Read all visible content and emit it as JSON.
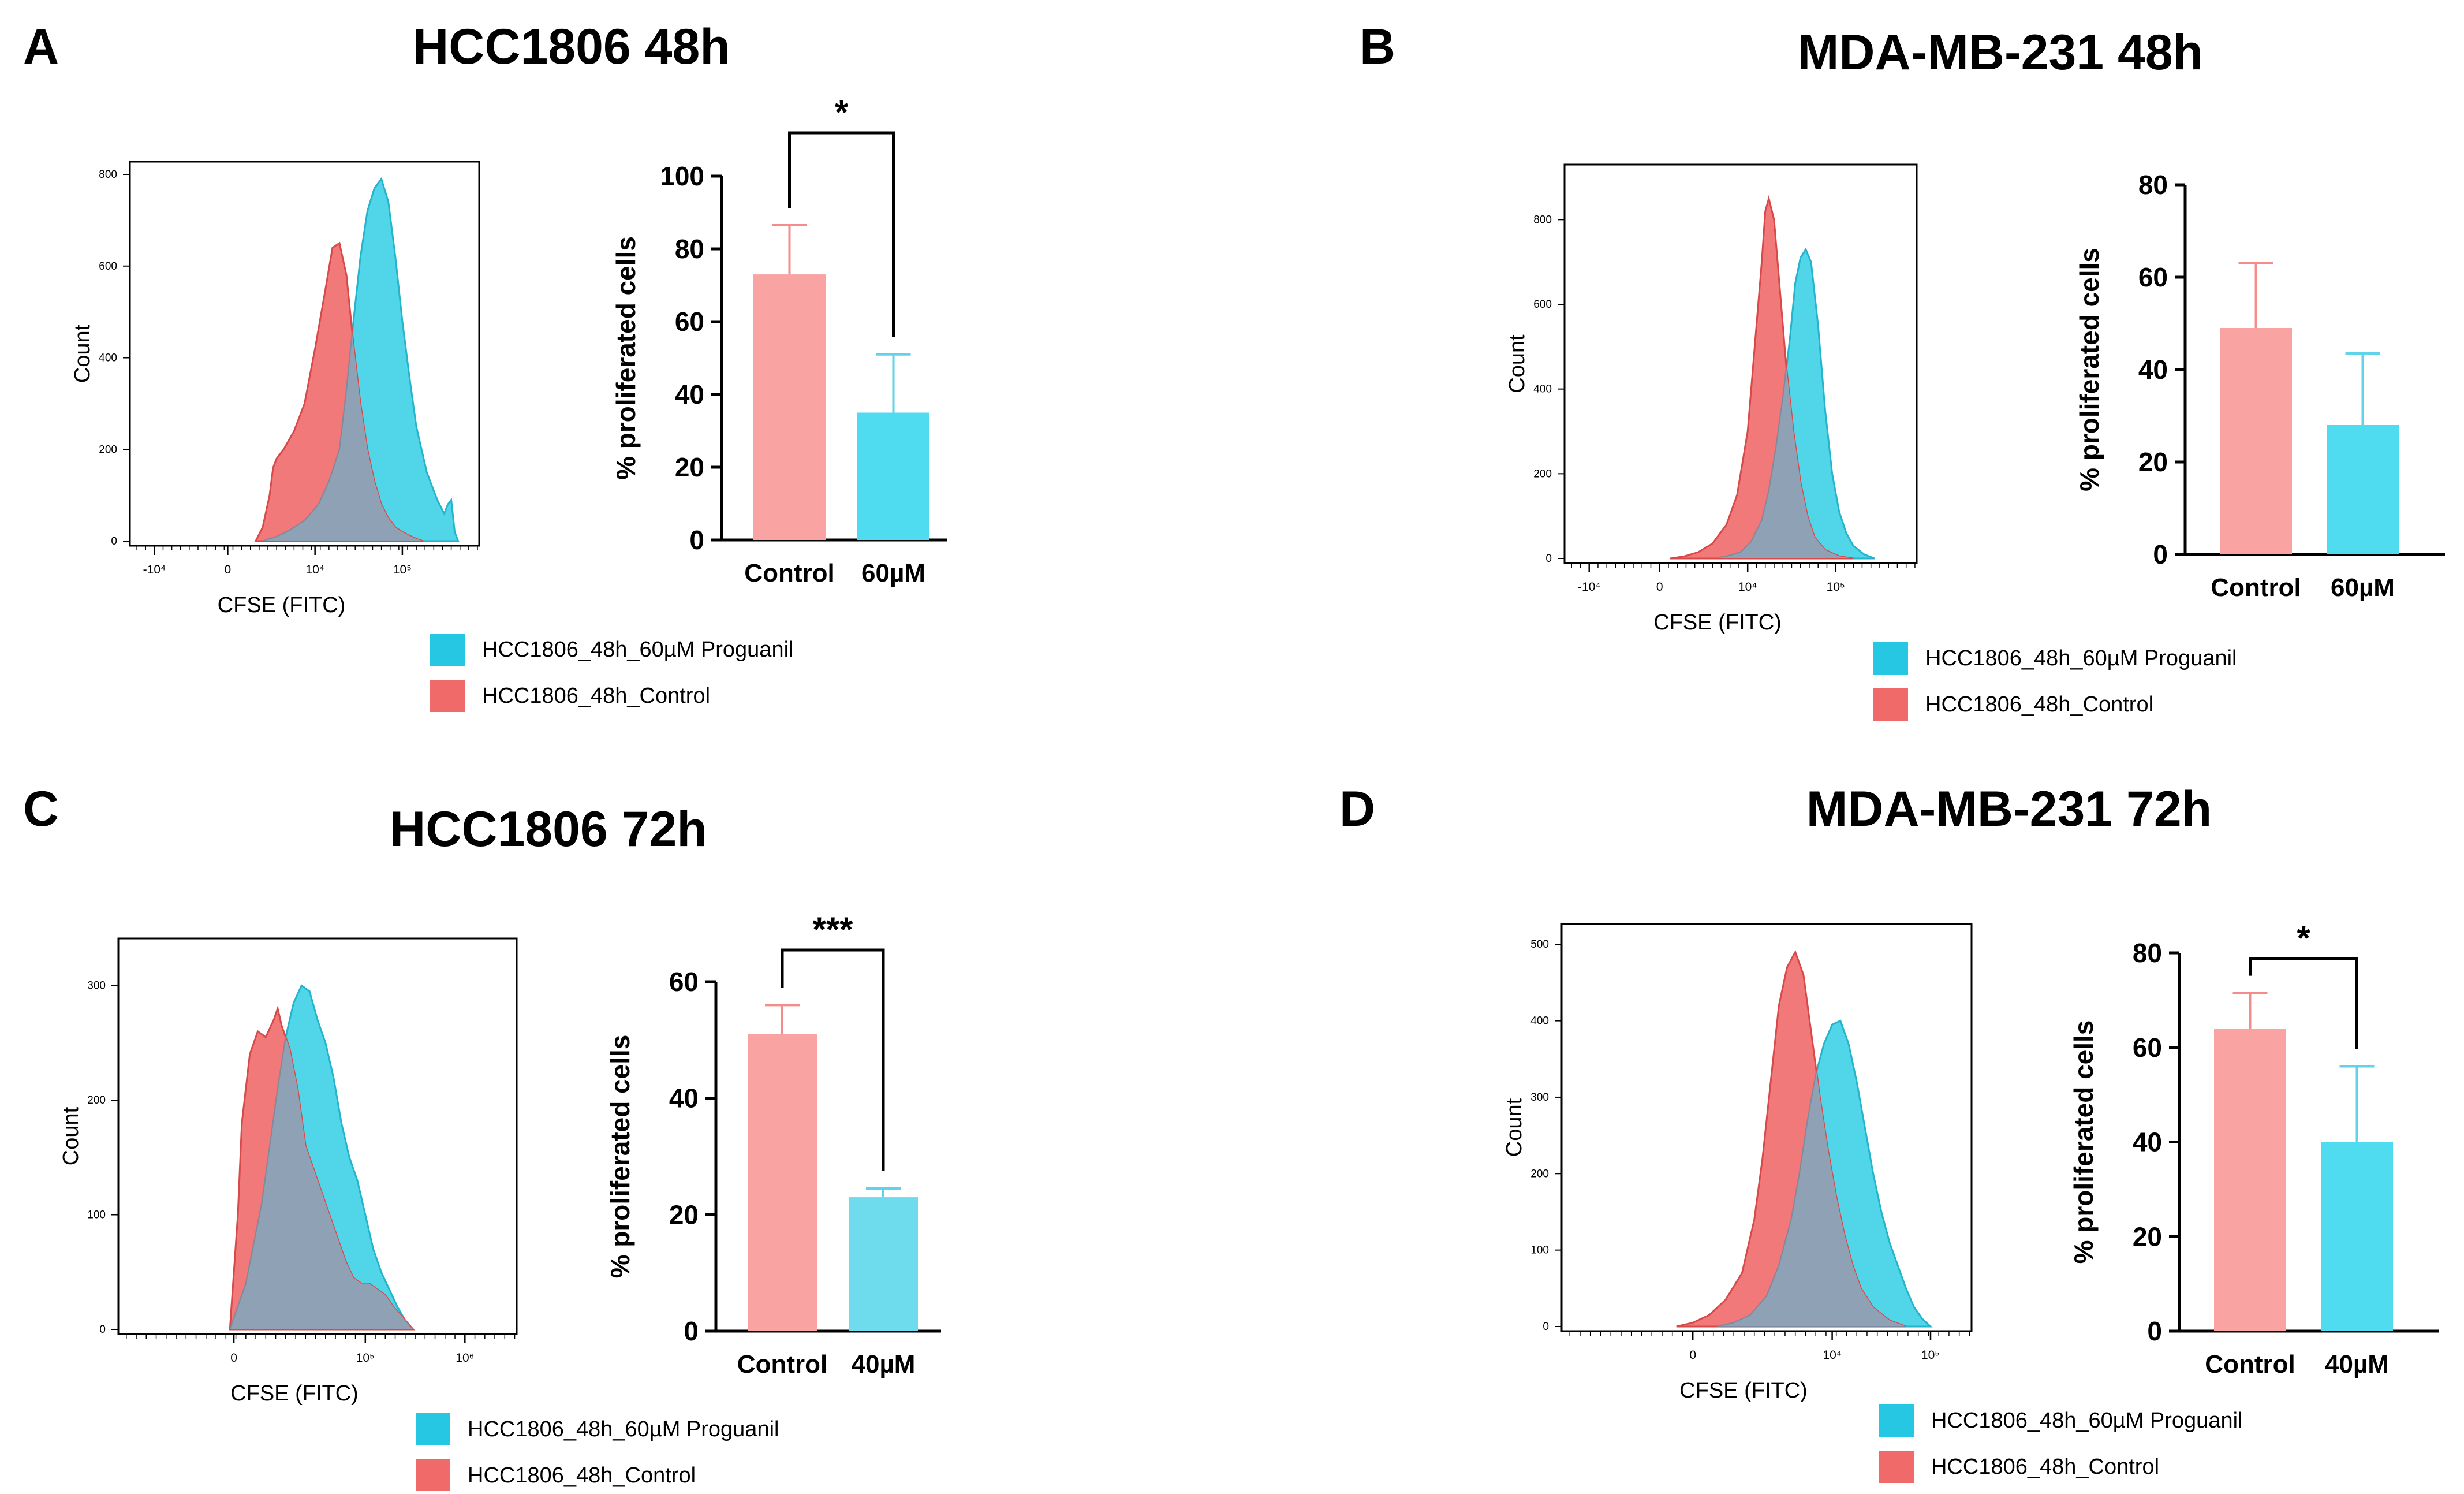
{
  "colors": {
    "control_fill": "#f06a6a",
    "treated_fill": "#3ed0e6",
    "overlap_fill": "#8fa2b5",
    "bar_control": "#f9a3a3",
    "bar_treated": "#4fdcf0",
    "bar_treated_soft": "#6fdcee",
    "legend_treated": "#25c7e2",
    "legend_control": "#f06a6a",
    "axis": "#000000"
  },
  "panels": [
    {
      "letter": "A",
      "title": "HCC1806 48h",
      "histogram": {
        "xlabel": "CFSE (FITC)",
        "ylabel": "Count",
        "x_ticks": [
          "-10⁴",
          "0",
          "10⁴",
          "10⁵"
        ],
        "y_ticks": [
          "0",
          "200",
          "400",
          "600",
          "800"
        ],
        "legend": [
          "HCC1806_48h_60µM Proguanil",
          "HCC1806_48h_Control"
        ]
      },
      "bar": {
        "ylabel": "% proliferated cells",
        "y_ticks": [
          "0",
          "20",
          "40",
          "60",
          "80",
          "100"
        ],
        "categories": [
          "Control",
          "60µM"
        ],
        "significance": "*"
      }
    },
    {
      "letter": "B",
      "title": "MDA-MB-231 48h",
      "histogram": {
        "xlabel": "CFSE (FITC)",
        "ylabel": "Count",
        "x_ticks": [
          "-10⁴",
          "0",
          "10⁴",
          "10⁵"
        ],
        "y_ticks": [
          "0",
          "200",
          "400",
          "600",
          "800"
        ],
        "legend": [
          "HCC1806_48h_60µM Proguanil",
          "HCC1806_48h_Control"
        ]
      },
      "bar": {
        "ylabel": "% proliferated cells",
        "y_ticks": [
          "0",
          "20",
          "40",
          "60",
          "80"
        ],
        "categories": [
          "Control",
          "60µM"
        ],
        "significance": ""
      }
    },
    {
      "letter": "C",
      "title": "HCC1806 72h",
      "histogram": {
        "xlabel": "CFSE (FITC)",
        "ylabel": "Count",
        "x_ticks": [
          "0",
          "10⁵",
          "10⁶"
        ],
        "y_ticks": [
          "0",
          "100",
          "200",
          "300"
        ],
        "legend": [
          "HCC1806_48h_60µM Proguanil",
          "HCC1806_48h_Control"
        ]
      },
      "bar": {
        "ylabel": "% proliferated cells",
        "y_ticks": [
          "0",
          "20",
          "40",
          "60"
        ],
        "categories": [
          "Control",
          "40µM"
        ],
        "significance": "***"
      }
    },
    {
      "letter": "D",
      "title": "MDA-MB-231 72h",
      "histogram": {
        "xlabel": "CFSE (FITC)",
        "ylabel": "Count",
        "x_ticks": [
          "0",
          "10⁴",
          "10⁵"
        ],
        "y_ticks": [
          "0",
          "100",
          "200",
          "300",
          "400",
          "500"
        ],
        "legend": [
          "HCC1806_48h_60µM Proguanil",
          "HCC1806_48h_Control"
        ]
      },
      "bar": {
        "ylabel": "% proliferated cells",
        "y_ticks": [
          "0",
          "20",
          "40",
          "60",
          "80"
        ],
        "categories": [
          "Control",
          "40µM"
        ],
        "significance": "*"
      }
    }
  ],
  "chart_data": [
    {
      "panel": "A",
      "type": "area",
      "title": "HCC1806 48h",
      "xlabel": "CFSE (FITC)",
      "ylabel": "Count",
      "ylim": [
        0,
        800
      ],
      "xlim": [
        0,
        1
      ],
      "series": [
        {
          "name": "HCC1806_48h_60µM Proguanil",
          "x": [
            0.38,
            0.42,
            0.46,
            0.5,
            0.54,
            0.57,
            0.6,
            0.62,
            0.64,
            0.66,
            0.68,
            0.7,
            0.72,
            0.74,
            0.76,
            0.78,
            0.8,
            0.82,
            0.85,
            0.88,
            0.9,
            0.91,
            0.92,
            0.93,
            0.94
          ],
          "y": [
            0,
            10,
            25,
            45,
            80,
            130,
            200,
            330,
            480,
            620,
            720,
            770,
            790,
            740,
            620,
            480,
            360,
            250,
            150,
            90,
            60,
            80,
            90,
            20,
            0
          ]
        },
        {
          "name": "HCC1806_48h_Control",
          "x": [
            0.36,
            0.38,
            0.4,
            0.41,
            0.42,
            0.44,
            0.47,
            0.5,
            0.53,
            0.56,
            0.58,
            0.6,
            0.62,
            0.64,
            0.66,
            0.68,
            0.7,
            0.72,
            0.74,
            0.76,
            0.78,
            0.8,
            0.82,
            0.84
          ],
          "y": [
            0,
            30,
            100,
            160,
            180,
            200,
            240,
            300,
            420,
            550,
            640,
            650,
            580,
            430,
            300,
            200,
            130,
            80,
            50,
            30,
            20,
            12,
            5,
            0
          ]
        }
      ]
    },
    {
      "panel": "A",
      "type": "bar",
      "title": "HCC1806 48h",
      "ylabel": "% proliferated cells",
      "ylim": [
        0,
        100
      ],
      "categories": [
        "Control",
        "60µM"
      ],
      "values": [
        73,
        35
      ],
      "errors": [
        13.5,
        16
      ],
      "significance": "*"
    },
    {
      "panel": "B",
      "type": "area",
      "title": "MDA-MB-231 48h",
      "xlabel": "CFSE (FITC)",
      "ylabel": "Count",
      "ylim": [
        0,
        900
      ],
      "xlim": [
        0,
        1
      ],
      "series": [
        {
          "name": "HCC1806_48h_60µM Proguanil",
          "x": [
            0.42,
            0.46,
            0.5,
            0.53,
            0.56,
            0.58,
            0.6,
            0.62,
            0.64,
            0.655,
            0.67,
            0.685,
            0.7,
            0.72,
            0.74,
            0.76,
            0.78,
            0.8,
            0.82,
            0.85,
            0.88
          ],
          "y": [
            0,
            5,
            15,
            40,
            90,
            160,
            260,
            380,
            520,
            650,
            710,
            730,
            700,
            550,
            350,
            200,
            110,
            60,
            30,
            10,
            0
          ]
        },
        {
          "name": "HCC1806_48h_Control",
          "x": [
            0.3,
            0.34,
            0.38,
            0.42,
            0.46,
            0.49,
            0.52,
            0.54,
            0.56,
            0.57,
            0.58,
            0.595,
            0.61,
            0.63,
            0.65,
            0.67,
            0.69,
            0.71,
            0.74,
            0.78,
            0.82
          ],
          "y": [
            0,
            5,
            15,
            35,
            80,
            150,
            300,
            500,
            700,
            820,
            850,
            800,
            650,
            450,
            300,
            180,
            100,
            50,
            20,
            5,
            0
          ]
        }
      ]
    },
    {
      "panel": "B",
      "type": "bar",
      "title": "MDA-MB-231 48h",
      "ylabel": "% proliferated cells",
      "ylim": [
        0,
        80
      ],
      "categories": [
        "Control",
        "60µM"
      ],
      "values": [
        49,
        28
      ],
      "errors": [
        14,
        15.5
      ],
      "significance": ""
    },
    {
      "panel": "C",
      "type": "area",
      "title": "HCC1806 72h",
      "xlabel": "CFSE (FITC)",
      "ylabel": "Count",
      "ylim": [
        0,
        330
      ],
      "xlim": [
        0,
        1
      ],
      "series": [
        {
          "name": "HCC1806_48h_60µM Proguanil",
          "x": [
            0.28,
            0.32,
            0.36,
            0.38,
            0.4,
            0.42,
            0.44,
            0.46,
            0.48,
            0.5,
            0.52,
            0.54,
            0.56,
            0.58,
            0.6,
            0.62,
            0.64,
            0.66,
            0.68,
            0.7,
            0.72,
            0.74
          ],
          "y": [
            0,
            40,
            110,
            160,
            210,
            255,
            285,
            300,
            295,
            270,
            250,
            220,
            180,
            150,
            130,
            100,
            70,
            50,
            35,
            20,
            8,
            0
          ]
        },
        {
          "name": "HCC1806_48h_Control",
          "x": [
            0.28,
            0.3,
            0.31,
            0.33,
            0.35,
            0.37,
            0.39,
            0.4,
            0.41,
            0.43,
            0.45,
            0.47,
            0.49,
            0.51,
            0.53,
            0.55,
            0.57,
            0.59,
            0.61,
            0.63,
            0.65,
            0.67,
            0.69,
            0.72,
            0.74
          ],
          "y": [
            0,
            100,
            180,
            240,
            260,
            255,
            270,
            280,
            265,
            245,
            210,
            160,
            140,
            120,
            100,
            80,
            60,
            45,
            40,
            40,
            35,
            30,
            20,
            8,
            0
          ]
        }
      ]
    },
    {
      "panel": "C",
      "type": "bar",
      "title": "HCC1806 72h",
      "ylabel": "% proliferated cells",
      "ylim": [
        0,
        60
      ],
      "categories": [
        "Control",
        "40µM"
      ],
      "values": [
        51,
        23
      ],
      "errors": [
        5,
        1.5
      ],
      "significance": "***"
    },
    {
      "panel": "D",
      "type": "area",
      "title": "MDA-MB-231 72h",
      "xlabel": "CFSE (FITC)",
      "ylabel": "Count",
      "ylim": [
        0,
        510
      ],
      "xlim": [
        0,
        1
      ],
      "series": [
        {
          "name": "HCC1806_48h_60µM Proguanil",
          "x": [
            0.38,
            0.42,
            0.46,
            0.5,
            0.53,
            0.56,
            0.58,
            0.6,
            0.62,
            0.64,
            0.66,
            0.68,
            0.7,
            0.72,
            0.74,
            0.76,
            0.78,
            0.8,
            0.82,
            0.84,
            0.86,
            0.88,
            0.9
          ],
          "y": [
            0,
            5,
            15,
            40,
            80,
            140,
            200,
            270,
            330,
            370,
            395,
            400,
            370,
            320,
            260,
            200,
            150,
            110,
            80,
            50,
            25,
            10,
            0
          ]
        },
        {
          "name": "HCC1806_48h_Control",
          "x": [
            0.28,
            0.32,
            0.36,
            0.4,
            0.44,
            0.47,
            0.49,
            0.51,
            0.53,
            0.55,
            0.57,
            0.59,
            0.61,
            0.63,
            0.65,
            0.67,
            0.69,
            0.71,
            0.73,
            0.76,
            0.8,
            0.84
          ],
          "y": [
            0,
            5,
            15,
            35,
            70,
            140,
            220,
            320,
            420,
            470,
            490,
            460,
            380,
            300,
            230,
            170,
            120,
            80,
            50,
            25,
            8,
            0
          ]
        }
      ]
    },
    {
      "panel": "D",
      "type": "bar",
      "title": "MDA-MB-231 72h",
      "ylabel": "% proliferated cells",
      "ylim": [
        0,
        80
      ],
      "categories": [
        "Control",
        "40µM"
      ],
      "values": [
        64,
        40
      ],
      "errors": [
        7.5,
        16
      ],
      "significance": "*"
    }
  ]
}
